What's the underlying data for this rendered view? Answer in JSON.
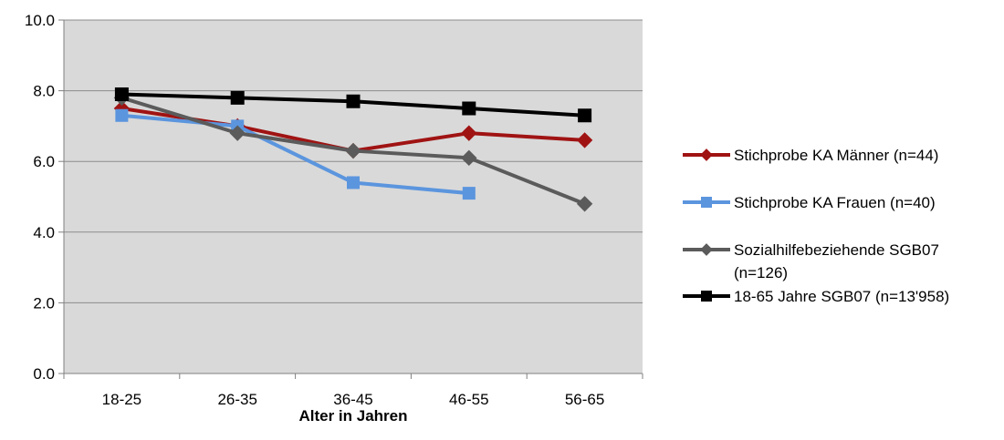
{
  "chart_data": {
    "type": "line",
    "categories": [
      "18-25",
      "26-35",
      "36-45",
      "46-55",
      "56-65"
    ],
    "xlabel": "Alter in Jahren",
    "ylabel": "",
    "ylim": [
      0,
      10
    ],
    "y_ticks": [
      "0.0",
      "2.0",
      "4.0",
      "6.0",
      "8.0",
      "10.0"
    ],
    "grid": true,
    "legend_position": "right",
    "series": [
      {
        "name": "Stichprobe KA Männer (n=44)",
        "name_lines": [
          "Stichprobe KA Männer (n=44)"
        ],
        "color": "#A01313",
        "marker": "diamond",
        "values": [
          7.5,
          7.0,
          6.3,
          6.8,
          6.6
        ]
      },
      {
        "name": "Stichprobe KA Frauen (n=40)",
        "name_lines": [
          "Stichprobe KA Frauen (n=40)"
        ],
        "color": "#5B95DE",
        "marker": "square",
        "values": [
          7.3,
          7.0,
          5.4,
          5.1,
          null
        ]
      },
      {
        "name": "Sozialhilfebeziehende SGB07 (n=126)",
        "name_lines": [
          "Sozialhilfebeziehende SGB07",
          "(n=126)"
        ],
        "color": "#5B5B5B",
        "marker": "diamond",
        "values": [
          7.8,
          6.8,
          6.3,
          6.1,
          4.8
        ]
      },
      {
        "name": "18-65 Jahre SGB07 (n=13'958)",
        "name_lines": [
          "18-65 Jahre SGB07 (n=13'958)"
        ],
        "color": "#000000",
        "marker": "square",
        "values": [
          7.9,
          7.8,
          7.7,
          7.5,
          7.3
        ]
      }
    ]
  }
}
